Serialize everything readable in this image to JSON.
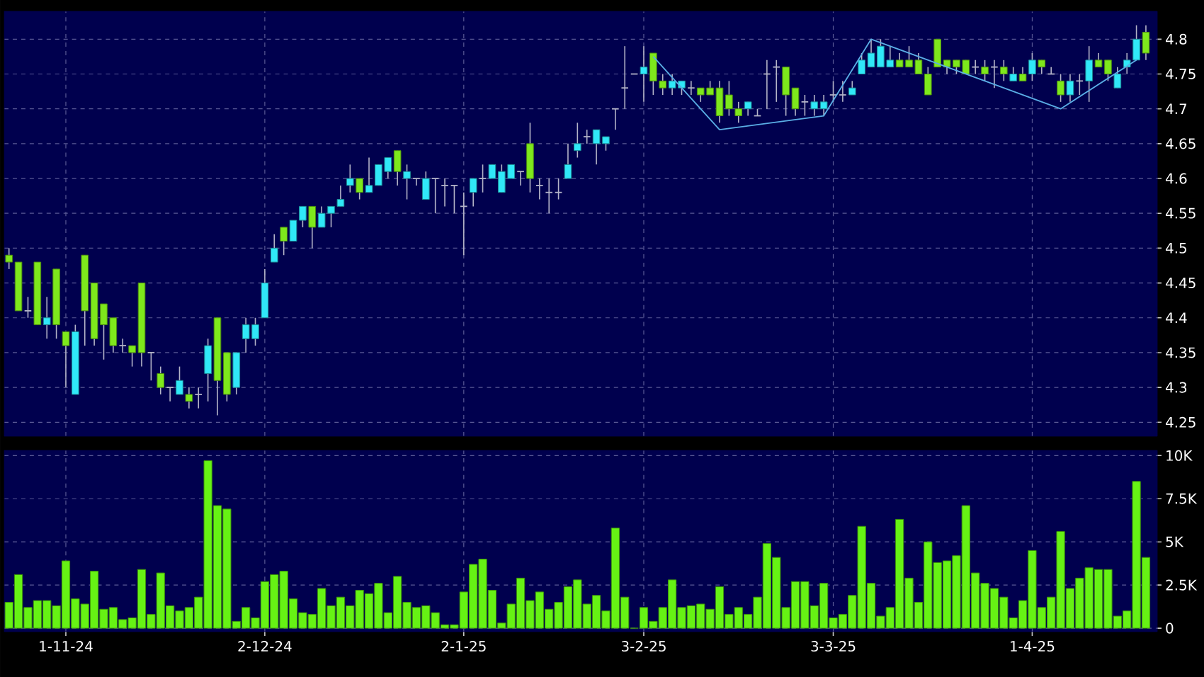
{
  "chart_data": [
    {
      "type": "candlestick",
      "categories": [
        null,
        null,
        null,
        null,
        null,
        null,
        null,
        null,
        null,
        null,
        null,
        null,
        null,
        null,
        null,
        null,
        null,
        null,
        null,
        null,
        null,
        null,
        null,
        null,
        null,
        null,
        null,
        null,
        null,
        null,
        null,
        null,
        null,
        null,
        null,
        null,
        null,
        null,
        null,
        null,
        null,
        null,
        null,
        null,
        null,
        null,
        null,
        null,
        null,
        null,
        null,
        null,
        null,
        null,
        null,
        null,
        null,
        null,
        null,
        null,
        null,
        null,
        null,
        null,
        null,
        null,
        null,
        null,
        null,
        null,
        null,
        null,
        null,
        null,
        null,
        null,
        null,
        null,
        null,
        null,
        null,
        null,
        null,
        null,
        null,
        null,
        null,
        null,
        null,
        null,
        null,
        null,
        null,
        null,
        null,
        null,
        null,
        null,
        null,
        null,
        null,
        null,
        null,
        null,
        null,
        null,
        null,
        null,
        null,
        null,
        null,
        null,
        null,
        null,
        null,
        null,
        null,
        null,
        null,
        null,
        null
      ],
      "ohlc": [
        [
          4.49,
          4.5,
          4.47,
          4.48
        ],
        [
          4.48,
          4.48,
          4.41,
          4.41
        ],
        [
          4.41,
          4.43,
          4.4,
          4.41
        ],
        [
          4.48,
          4.48,
          4.39,
          4.39
        ],
        [
          4.39,
          4.43,
          4.37,
          4.4
        ],
        [
          4.47,
          4.47,
          4.37,
          4.39
        ],
        [
          4.38,
          4.38,
          4.3,
          4.36
        ],
        [
          4.29,
          4.39,
          4.29,
          4.38
        ],
        [
          4.49,
          4.49,
          4.36,
          4.41
        ],
        [
          4.45,
          4.45,
          4.36,
          4.37
        ],
        [
          4.42,
          4.42,
          4.34,
          4.39
        ],
        [
          4.4,
          4.4,
          4.35,
          4.36
        ],
        [
          4.36,
          4.37,
          4.35,
          4.36
        ],
        [
          4.36,
          4.36,
          4.33,
          4.35
        ],
        [
          4.45,
          4.45,
          4.33,
          4.35
        ],
        [
          4.35,
          4.35,
          4.31,
          4.35
        ],
        [
          4.32,
          4.33,
          4.29,
          4.3
        ],
        [
          4.3,
          4.3,
          4.28,
          4.3
        ],
        [
          4.29,
          4.33,
          4.29,
          4.31
        ],
        [
          4.29,
          4.3,
          4.27,
          4.28
        ],
        [
          4.29,
          4.3,
          4.27,
          4.29
        ],
        [
          4.32,
          4.37,
          4.28,
          4.36
        ],
        [
          4.4,
          4.4,
          4.26,
          4.31
        ],
        [
          4.35,
          4.35,
          4.28,
          4.29
        ],
        [
          4.3,
          4.35,
          4.29,
          4.35
        ],
        [
          4.37,
          4.4,
          4.35,
          4.39
        ],
        [
          4.37,
          4.4,
          4.36,
          4.39
        ],
        [
          4.4,
          4.47,
          4.4,
          4.45
        ],
        [
          4.48,
          4.52,
          4.48,
          4.5
        ],
        [
          4.53,
          4.53,
          4.49,
          4.51
        ],
        [
          4.51,
          4.54,
          4.51,
          4.54
        ],
        [
          4.54,
          4.56,
          4.53,
          4.56
        ],
        [
          4.56,
          4.56,
          4.5,
          4.53
        ],
        [
          4.53,
          4.56,
          4.53,
          4.55
        ],
        [
          4.55,
          4.56,
          4.53,
          4.56
        ],
        [
          4.56,
          4.59,
          4.56,
          4.57
        ],
        [
          4.59,
          4.62,
          4.58,
          4.6
        ],
        [
          4.6,
          4.6,
          4.57,
          4.58
        ],
        [
          4.58,
          4.63,
          4.58,
          4.59
        ],
        [
          4.59,
          4.62,
          4.59,
          4.62
        ],
        [
          4.61,
          4.63,
          4.6,
          4.63
        ],
        [
          4.64,
          4.64,
          4.59,
          4.61
        ],
        [
          4.6,
          4.62,
          4.57,
          4.61
        ],
        [
          4.6,
          4.6,
          4.59,
          4.6
        ],
        [
          4.57,
          4.61,
          4.57,
          4.6
        ],
        [
          4.6,
          4.6,
          4.55,
          4.6
        ],
        [
          4.59,
          4.6,
          4.56,
          4.59
        ],
        [
          4.59,
          4.59,
          4.55,
          4.59
        ],
        [
          4.56,
          4.58,
          4.49,
          4.56
        ],
        [
          4.58,
          4.6,
          4.56,
          4.6
        ],
        [
          4.6,
          4.62,
          4.58,
          4.6
        ],
        [
          4.6,
          4.62,
          4.6,
          4.62
        ],
        [
          4.58,
          4.62,
          4.58,
          4.61
        ],
        [
          4.6,
          4.62,
          4.6,
          4.62
        ],
        [
          4.61,
          4.61,
          4.59,
          4.61
        ],
        [
          4.65,
          4.68,
          4.58,
          4.6
        ],
        [
          4.59,
          4.6,
          4.57,
          4.59
        ],
        [
          4.58,
          4.6,
          4.55,
          4.58
        ],
        [
          4.58,
          4.6,
          4.57,
          4.58
        ],
        [
          4.6,
          4.65,
          4.6,
          4.62
        ],
        [
          4.64,
          4.68,
          4.63,
          4.65
        ],
        [
          4.66,
          4.67,
          4.65,
          4.66
        ],
        [
          4.65,
          4.67,
          4.62,
          4.67
        ],
        [
          4.65,
          4.66,
          4.64,
          4.66
        ],
        [
          4.7,
          4.7,
          4.67,
          4.7
        ],
        [
          4.73,
          4.79,
          4.7,
          4.73
        ],
        [
          4.75,
          4.75,
          4.75,
          4.75
        ],
        [
          4.75,
          4.79,
          4.71,
          4.76
        ],
        [
          4.78,
          4.78,
          4.72,
          4.74
        ],
        [
          4.74,
          4.75,
          4.72,
          4.73
        ],
        [
          4.73,
          4.75,
          4.72,
          4.74
        ],
        [
          4.73,
          4.74,
          4.72,
          4.74
        ],
        [
          4.73,
          4.74,
          4.72,
          4.73
        ],
        [
          4.73,
          4.73,
          4.71,
          4.72
        ],
        [
          4.73,
          4.74,
          4.72,
          4.72
        ],
        [
          4.73,
          4.74,
          4.68,
          4.69
        ],
        [
          4.72,
          4.74,
          4.69,
          4.7
        ],
        [
          4.7,
          4.71,
          4.68,
          4.69
        ],
        [
          4.7,
          4.71,
          4.69,
          4.71
        ],
        [
          4.69,
          4.7,
          4.69,
          4.69
        ],
        [
          4.75,
          4.77,
          4.7,
          4.75
        ],
        [
          4.76,
          4.77,
          4.71,
          4.76
        ],
        [
          4.76,
          4.76,
          4.69,
          4.72
        ],
        [
          4.73,
          4.73,
          4.69,
          4.7
        ],
        [
          4.71,
          4.72,
          4.69,
          4.71
        ],
        [
          4.7,
          4.72,
          4.69,
          4.71
        ],
        [
          4.7,
          4.72,
          4.69,
          4.71
        ],
        [
          4.72,
          4.74,
          4.71,
          4.72
        ],
        [
          4.72,
          4.74,
          4.71,
          4.72
        ],
        [
          4.72,
          4.74,
          4.72,
          4.73
        ],
        [
          4.75,
          4.78,
          4.75,
          4.77
        ],
        [
          4.76,
          4.8,
          4.76,
          4.78
        ],
        [
          4.76,
          4.8,
          4.76,
          4.79
        ],
        [
          4.76,
          4.79,
          4.76,
          4.77
        ],
        [
          4.77,
          4.78,
          4.76,
          4.76
        ],
        [
          4.77,
          4.79,
          4.76,
          4.76
        ],
        [
          4.77,
          4.78,
          4.75,
          4.75
        ],
        [
          4.75,
          4.76,
          4.72,
          4.72
        ],
        [
          4.8,
          4.8,
          4.76,
          4.76
        ],
        [
          4.77,
          4.77,
          4.75,
          4.76
        ],
        [
          4.77,
          4.77,
          4.75,
          4.76
        ],
        [
          4.77,
          4.77,
          4.75,
          4.75
        ],
        [
          4.76,
          4.77,
          4.75,
          4.76
        ],
        [
          4.76,
          4.77,
          4.74,
          4.75
        ],
        [
          4.76,
          4.77,
          4.73,
          4.76
        ],
        [
          4.76,
          4.77,
          4.74,
          4.75
        ],
        [
          4.74,
          4.76,
          4.74,
          4.75
        ],
        [
          4.75,
          4.76,
          4.74,
          4.74
        ],
        [
          4.75,
          4.78,
          4.74,
          4.77
        ],
        [
          4.77,
          4.77,
          4.75,
          4.76
        ],
        [
          4.75,
          4.76,
          4.75,
          4.75
        ],
        [
          4.74,
          4.75,
          4.71,
          4.72
        ],
        [
          4.72,
          4.75,
          4.71,
          4.74
        ],
        [
          4.74,
          4.75,
          4.72,
          4.74
        ],
        [
          4.74,
          4.79,
          4.71,
          4.77
        ],
        [
          4.77,
          4.78,
          4.76,
          4.76
        ],
        [
          4.77,
          4.77,
          4.74,
          4.75
        ],
        [
          4.73,
          4.76,
          4.73,
          4.75
        ],
        [
          4.76,
          4.78,
          4.75,
          4.77
        ],
        [
          4.77,
          4.82,
          4.77,
          4.8
        ],
        [
          4.81,
          4.82,
          4.77,
          4.78
        ]
      ],
      "colors": [
        "#7ee81c",
        "#7ee81c",
        "#b4b4c8",
        "#7ee81c",
        "#30e8f8",
        "#7ee81c",
        "#7ee81c",
        "#30e8f8",
        "#7ee81c",
        "#7ee81c",
        "#7ee81c",
        "#7ee81c",
        "#b4b4c8",
        "#7ee81c",
        "#7ee81c",
        "#b4b4c8",
        "#7ee81c",
        "#b4b4c8",
        "#30e8f8",
        "#7ee81c",
        "#b4b4c8",
        "#30e8f8",
        "#7ee81c",
        "#7ee81c",
        "#30e8f8",
        "#30e8f8",
        "#30e8f8",
        "#30e8f8",
        "#30e8f8",
        "#7ee81c",
        "#30e8f8",
        "#30e8f8",
        "#7ee81c",
        "#30e8f8",
        "#30e8f8",
        "#30e8f8",
        "#30e8f8",
        "#7ee81c",
        "#30e8f8",
        "#30e8f8",
        "#30e8f8",
        "#7ee81c",
        "#30e8f8",
        "#b4b4c8",
        "#30e8f8",
        "#b4b4c8",
        "#b4b4c8",
        "#b4b4c8",
        "#b4b4c8",
        "#30e8f8",
        "#b4b4c8",
        "#30e8f8",
        "#30e8f8",
        "#30e8f8",
        "#b4b4c8",
        "#7ee81c",
        "#b4b4c8",
        "#b4b4c8",
        "#b4b4c8",
        "#30e8f8",
        "#30e8f8",
        "#b4b4c8",
        "#30e8f8",
        "#30e8f8",
        "#b4b4c8",
        "#b4b4c8",
        "#b4b4c8",
        "#30e8f8",
        "#7ee81c",
        "#7ee81c",
        "#30e8f8",
        "#30e8f8",
        "#b4b4c8",
        "#7ee81c",
        "#7ee81c",
        "#7ee81c",
        "#7ee81c",
        "#7ee81c",
        "#30e8f8",
        "#b4b4c8",
        "#b4b4c8",
        "#b4b4c8",
        "#7ee81c",
        "#7ee81c",
        "#b4b4c8",
        "#30e8f8",
        "#30e8f8",
        "#b4b4c8",
        "#b4b4c8",
        "#30e8f8",
        "#30e8f8",
        "#30e8f8",
        "#30e8f8",
        "#30e8f8",
        "#7ee81c",
        "#7ee81c",
        "#7ee81c",
        "#7ee81c",
        "#7ee81c",
        "#7ee81c",
        "#7ee81c",
        "#7ee81c",
        "#b4b4c8",
        "#7ee81c",
        "#b4b4c8",
        "#7ee81c",
        "#30e8f8",
        "#7ee81c",
        "#30e8f8",
        "#7ee81c",
        "#b4b4c8",
        "#7ee81c",
        "#30e8f8",
        "#b4b4c8",
        "#30e8f8",
        "#7ee81c",
        "#7ee81c",
        "#30e8f8",
        "#30e8f8",
        "#30e8f8",
        "#7ee81c"
      ],
      "series": [
        {
          "type": "line",
          "color": "#5aaee6",
          "values": [
            null,
            null,
            null,
            null,
            null,
            null,
            null,
            null,
            null,
            null,
            null,
            null,
            null,
            null,
            null,
            null,
            null,
            null,
            null,
            null,
            null,
            null,
            null,
            null,
            null,
            null,
            null,
            null,
            null,
            null,
            null,
            null,
            null,
            null,
            null,
            null,
            null,
            null,
            null,
            null,
            null,
            null,
            null,
            null,
            null,
            null,
            null,
            null,
            null,
            null,
            null,
            null,
            null,
            null,
            null,
            null,
            null,
            null,
            null,
            null,
            null,
            null,
            null,
            null,
            null,
            null,
            null,
            null,
            4.775,
            null,
            null,
            null,
            null,
            null,
            null,
            4.67,
            null,
            null,
            null,
            null,
            null,
            null,
            null,
            null,
            null,
            null,
            4.69,
            null,
            null,
            null,
            null,
            4.8,
            null,
            null,
            null,
            null,
            null,
            null,
            null,
            null,
            null,
            null,
            null,
            null,
            null,
            null,
            null,
            null,
            null,
            null,
            null,
            4.7,
            null,
            null,
            null,
            null,
            null,
            null,
            null,
            4.77,
            null
          ]
        }
      ],
      "ylim": [
        4.23,
        4.84
      ],
      "yticks": [
        4.25,
        4.3,
        4.35,
        4.4,
        4.45,
        4.5,
        4.55,
        4.6,
        4.65,
        4.7,
        4.75,
        4.8
      ],
      "grid": true,
      "tick_labels": "y"
    },
    {
      "type": "bar",
      "categories": [
        null,
        null,
        null,
        null,
        null,
        null,
        "1-11-24",
        null,
        null,
        null,
        null,
        null,
        null,
        null,
        null,
        null,
        null,
        null,
        null,
        null,
        null,
        null,
        null,
        null,
        null,
        null,
        null,
        "2-12-24",
        null,
        null,
        null,
        null,
        null,
        null,
        null,
        null,
        null,
        null,
        null,
        null,
        null,
        null,
        null,
        null,
        null,
        null,
        null,
        null,
        "2-1-25",
        null,
        null,
        null,
        null,
        null,
        null,
        null,
        null,
        null,
        null,
        null,
        null,
        null,
        null,
        null,
        null,
        null,
        null,
        "3-2-25",
        null,
        null,
        null,
        null,
        null,
        null,
        null,
        null,
        null,
        null,
        null,
        null,
        null,
        null,
        null,
        null,
        null,
        null,
        null,
        "3-3-25",
        null,
        null,
        null,
        null,
        null,
        null,
        null,
        null,
        null,
        null,
        null,
        null,
        null,
        null,
        null,
        null,
        null,
        null,
        null,
        null,
        "1-4-25",
        null,
        null,
        null,
        null,
        null,
        null,
        null,
        null,
        null,
        null,
        null,
        null
      ],
      "values": [
        1500,
        3100,
        1200,
        1600,
        1600,
        1300,
        3900,
        1700,
        1400,
        3300,
        1100,
        1200,
        500,
        600,
        3400,
        800,
        3200,
        1300,
        1000,
        1200,
        1800,
        9700,
        7100,
        6900,
        400,
        1200,
        600,
        2700,
        3100,
        3300,
        1700,
        900,
        800,
        2300,
        1300,
        1800,
        1300,
        2200,
        2000,
        2600,
        900,
        3000,
        1500,
        1200,
        1300,
        900,
        200,
        200,
        2100,
        3700,
        4000,
        2200,
        300,
        1400,
        2900,
        1600,
        2100,
        1100,
        1500,
        2400,
        2800,
        1400,
        1900,
        1000,
        5800,
        1800,
        0,
        1200,
        400,
        1200,
        2800,
        1200,
        1300,
        1400,
        1100,
        2400,
        800,
        1200,
        800,
        1800,
        4900,
        4100,
        1200,
        2700,
        2700,
        1300,
        2600,
        600,
        800,
        1900,
        5900,
        2600,
        700,
        1200,
        6300,
        2900,
        1500,
        5000,
        3800,
        3900,
        4200,
        7100,
        3200,
        2600,
        2300,
        1800,
        600,
        1600,
        4500,
        1200,
        1800,
        5600,
        2300,
        2900,
        3500,
        3400,
        3400,
        700,
        1000,
        8500,
        4100
      ],
      "color": "#66f214",
      "ylim": [
        -200,
        10300
      ],
      "yticks": [
        0,
        {
          "value": 2500,
          "label": "2.5K"
        },
        {
          "value": 5000,
          "label": "5K"
        },
        {
          "value": 7500,
          "label": "7.5K"
        },
        {
          "value": 10000,
          "label": "10K"
        }
      ],
      "grid": true
    }
  ]
}
